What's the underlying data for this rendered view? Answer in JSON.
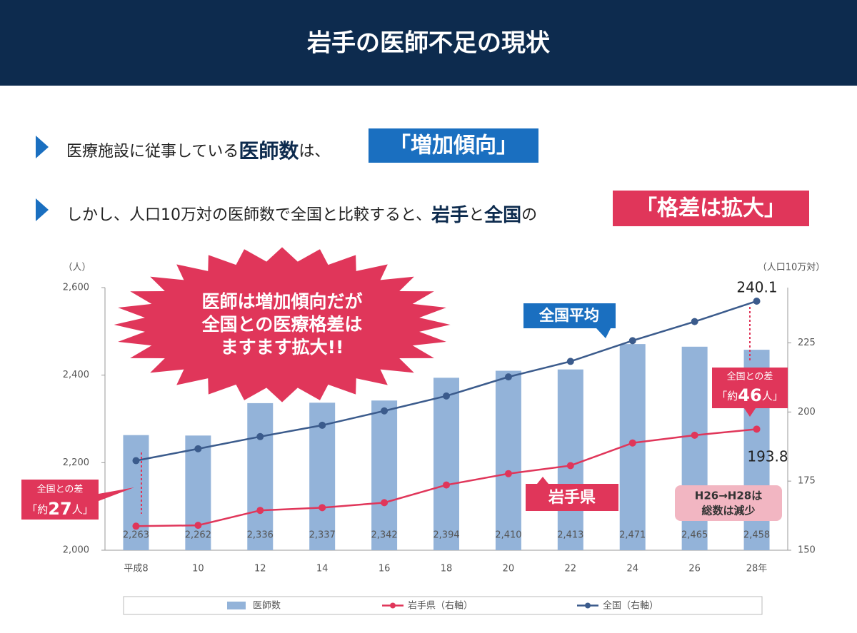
{
  "header": {
    "title": "岩手の医師不足の現状"
  },
  "bullets": [
    [
      "医療施設に従事している",
      "医師数",
      "は、",
      "「増加傾向」"
    ],
    [
      "しかし、人口10万対の医師数で全国と比較すると、",
      "岩手",
      "と",
      "全国",
      "の",
      "「格差は拡大」"
    ]
  ],
  "chart_data": {
    "type": "bar-line",
    "y_unit": "（人）",
    "y2_unit": "（人口10万対）",
    "categories": [
      "平成8",
      "10",
      "12",
      "14",
      "16",
      "18",
      "20",
      "22",
      "24",
      "26",
      "28年"
    ],
    "ylim": [
      2000,
      2600
    ],
    "yticks": [
      {
        "value": 2000,
        "label": "2,000"
      },
      {
        "value": 2200,
        "label": "2,200"
      },
      {
        "value": 2400,
        "label": "2,400"
      },
      {
        "value": 2600,
        "label": "2,600"
      }
    ],
    "y2lim": [
      150,
      245
    ],
    "y2ticks": [
      150,
      175,
      200,
      225
    ],
    "series": [
      {
        "name": "医師数",
        "color": "#93b3d9",
        "values": [
          2263,
          2262,
          2336,
          2337,
          2342,
          2394,
          2410,
          2413,
          2471,
          2465,
          2458
        ],
        "value_labels": [
          "2,263",
          "2,262",
          "2,336",
          "2,337",
          "2,342",
          "2,394",
          "2,410",
          "2,413",
          "2,471",
          "2,465",
          "2,458"
        ]
      },
      {
        "name": "全国（右軸）",
        "color": "#3b5b8c",
        "axis": "y2",
        "values": [
          182.4,
          186.7,
          191.1,
          195.2,
          200.4,
          205.8,
          212.7,
          218.3,
          225.8,
          232.7,
          240.1
        ]
      },
      {
        "name": "岩手県（右軸）",
        "color": "#e0365a",
        "axis": "y2",
        "values": [
          158.7,
          159.0,
          164.4,
          165.4,
          167.2,
          173.6,
          177.7,
          180.6,
          188.8,
          191.6,
          193.8
        ]
      }
    ],
    "annotations": {
      "burst": [
        "医師は増加傾向だが",
        "全国との医療格差は",
        "ますます拡大!!"
      ],
      "national": "全国平均",
      "iwate": "岩手県",
      "gap_left": [
        "全国との差",
        "「約",
        "27",
        "人」"
      ],
      "gap_right": [
        "全国との差",
        "「約",
        "46",
        "人」"
      ],
      "note": [
        "H26→H28は",
        "総数は減少"
      ]
    }
  }
}
